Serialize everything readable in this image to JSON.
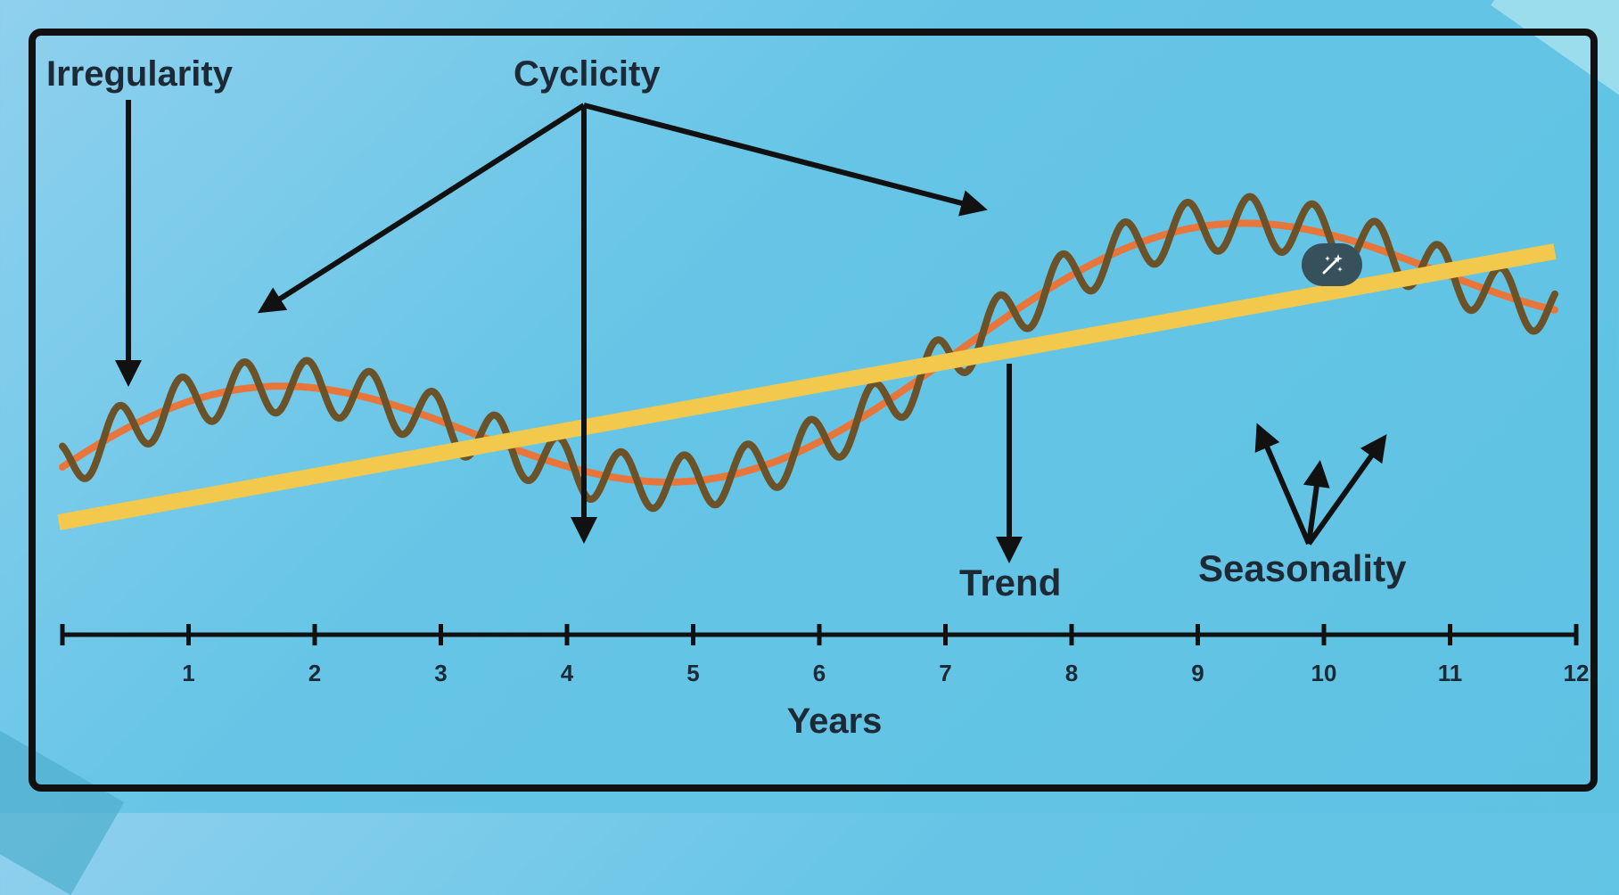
{
  "labels": {
    "irregularity": "Irregularity",
    "cyclicity": "Cyclicity",
    "trend": "Trend",
    "seasonality": "Seasonality"
  },
  "axis": {
    "title": "Years",
    "ticks": [
      "1",
      "2",
      "3",
      "4",
      "5",
      "6",
      "7",
      "8",
      "9",
      "10",
      "11",
      "12"
    ]
  },
  "colors": {
    "background": "#5fc2e3",
    "frame": "#111111",
    "trend_line": "#f2c94c",
    "cycle_line": "#e8763a",
    "series_line": "#6b5228",
    "arrows": "#111111",
    "magic_button": "#36505c"
  },
  "icons": {
    "magic_button": "magic-wand-icon"
  }
}
